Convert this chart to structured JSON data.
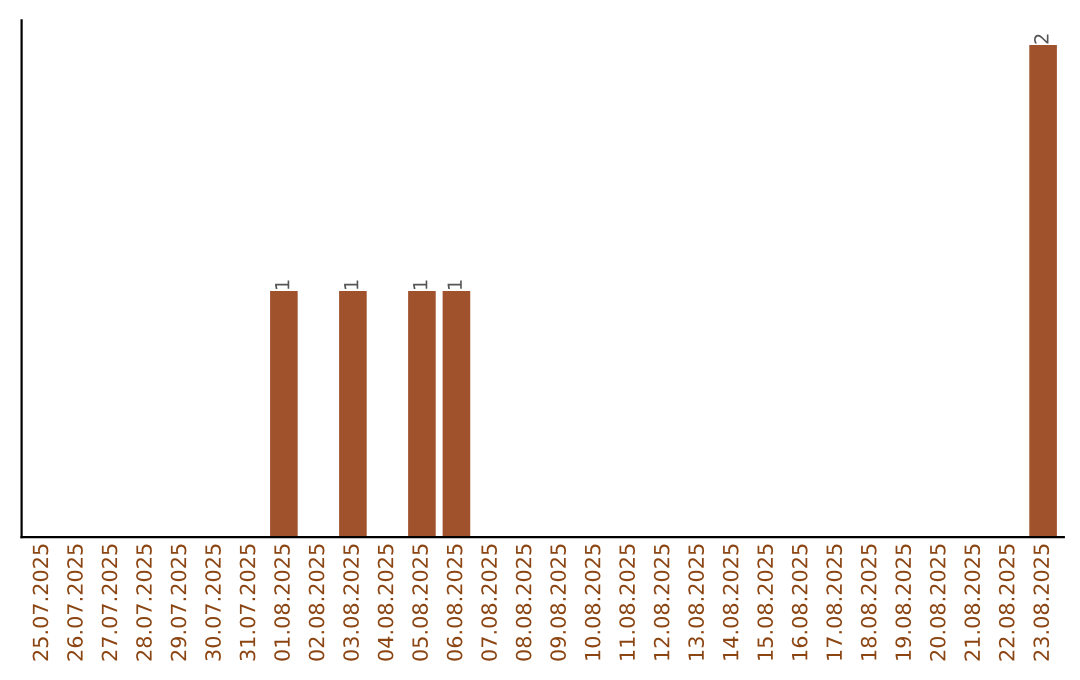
{
  "chart_data": {
    "type": "bar",
    "categories": [
      "25.07.2025",
      "26.07.2025",
      "27.07.2025",
      "28.07.2025",
      "29.07.2025",
      "30.07.2025",
      "31.07.2025",
      "01.08.2025",
      "02.08.2025",
      "03.08.2025",
      "04.08.2025",
      "05.08.2025",
      "06.08.2025",
      "07.08.2025",
      "08.08.2025",
      "09.08.2025",
      "10.08.2025",
      "11.08.2025",
      "12.08.2025",
      "13.08.2025",
      "14.08.2025",
      "15.08.2025",
      "16.08.2025",
      "17.08.2025",
      "18.08.2025",
      "19.08.2025",
      "20.08.2025",
      "21.08.2025",
      "22.08.2025",
      "23.08.2025"
    ],
    "values": [
      0,
      0,
      0,
      0,
      0,
      0,
      0,
      1,
      0,
      1,
      0,
      1,
      1,
      0,
      0,
      0,
      0,
      0,
      0,
      0,
      0,
      0,
      0,
      0,
      0,
      0,
      0,
      0,
      0,
      2
    ],
    "value_labels": [
      null,
      null,
      null,
      null,
      null,
      null,
      null,
      "1",
      null,
      "1",
      null,
      "1",
      "1",
      null,
      null,
      null,
      null,
      null,
      null,
      null,
      null,
      null,
      null,
      null,
      null,
      null,
      null,
      null,
      null,
      "2"
    ],
    "color": "#a0522d",
    "tick_labels": "x",
    "grid": false
  }
}
